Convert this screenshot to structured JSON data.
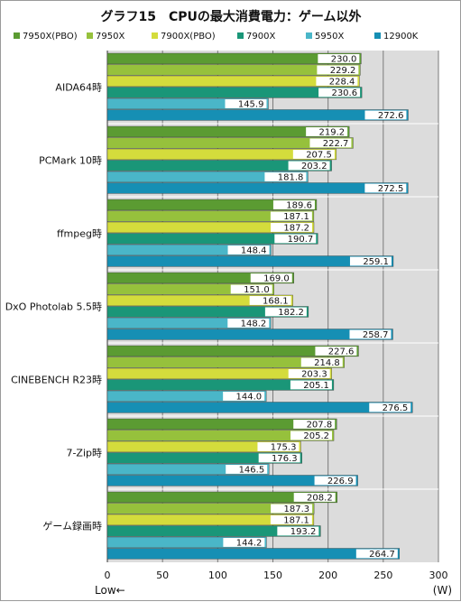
{
  "chart_data": {
    "type": "bar",
    "orientation": "horizontal",
    "title": "グラフ15　CPUの最大消費電力：ゲーム以外",
    "categories": [
      "AIDA64時",
      "PCMark 10時",
      "ffmpeg時",
      "DxO Photolab 5.5時",
      "CINEBENCH R23時",
      "7-Zip時",
      "ゲーム録画時"
    ],
    "series": [
      {
        "name": "7950X(PBO)",
        "color": "#5b9b32",
        "values": [
          230.0,
          219.2,
          189.6,
          169.0,
          227.6,
          207.8,
          208.2
        ],
        "labels": [
          "230.0",
          "219.2",
          "189.6",
          "169.0",
          "227.6",
          "207.8",
          "208.2"
        ]
      },
      {
        "name": "7950X",
        "color": "#96c13c",
        "values": [
          229.2,
          222.7,
          187.1,
          151.0,
          214.8,
          205.2,
          187.3
        ],
        "labels": [
          "229.2",
          "222.7",
          "187.1",
          "151.0",
          "214.8",
          "205.2",
          "187.3"
        ]
      },
      {
        "name": "7900X(PBO)",
        "color": "#d4dc3c",
        "values": [
          228.4,
          207.5,
          187.2,
          168.1,
          203.3,
          175.3,
          187.1
        ],
        "labels": [
          "228.4",
          "207.5",
          "187.2",
          "168.1",
          "203.3",
          "175.3",
          "187.1"
        ]
      },
      {
        "name": "7900X",
        "color": "#1a9678",
        "values": [
          230.6,
          203.2,
          190.7,
          182.2,
          205.1,
          176.3,
          193.2
        ],
        "labels": [
          "230.6",
          "203.2",
          "190.7",
          "182.2",
          "205.1",
          "176.3",
          "193.2"
        ]
      },
      {
        "name": "5950X",
        "color": "#4ab6c8",
        "values": [
          145.9,
          181.8,
          148.4,
          148.2,
          144.0,
          146.5,
          144.2
        ],
        "labels": [
          "145.9",
          "181.8",
          "148.4",
          "148.2",
          "144.0",
          "146.5",
          "144.2"
        ]
      },
      {
        "name": "12900K",
        "color": "#168fb4",
        "values": [
          272.6,
          272.5,
          259.1,
          258.7,
          276.5,
          226.9,
          264.7
        ],
        "labels": [
          "272.6",
          "272.5",
          "259.1",
          "258.7",
          "276.5",
          "226.9",
          "264.7"
        ]
      }
    ],
    "xlim": [
      0,
      300
    ],
    "xticks": [
      0,
      50,
      100,
      150,
      200,
      250,
      300
    ],
    "xticklabels": [
      "0",
      "50",
      "100",
      "150",
      "200",
      "250",
      "300"
    ],
    "unit_label": "(W)",
    "direction_label": "Low←",
    "legend_position": "top",
    "grid": true,
    "colors": {
      "plot_background": "#dcdcdc",
      "gridline": "#7a7a7a"
    }
  }
}
